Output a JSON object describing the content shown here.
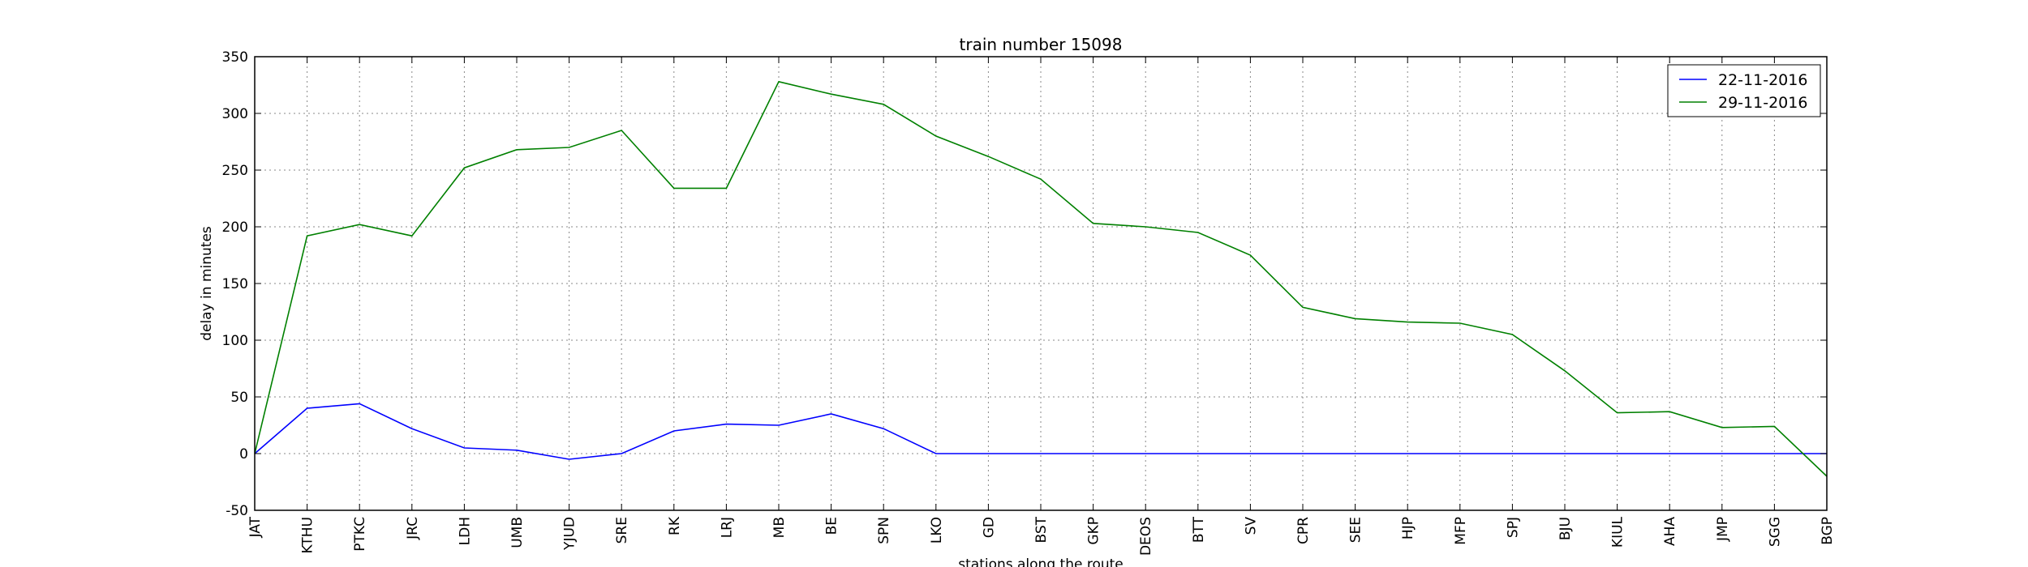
{
  "chart_data": {
    "type": "line",
    "title": "train number 15098",
    "xlabel": "stations along the route",
    "ylabel": "delay in minutes",
    "ylim": [
      -50,
      350
    ],
    "yticks": [
      -50,
      0,
      50,
      100,
      150,
      200,
      250,
      300,
      350
    ],
    "grid": true,
    "legend": "top-right",
    "categories": [
      "JAT",
      "KTHU",
      "PTKC",
      "JRC",
      "LDH",
      "UMB",
      "YJUD",
      "SRE",
      "RK",
      "LRJ",
      "MB",
      "BE",
      "SPN",
      "LKO",
      "GD",
      "BST",
      "GKP",
      "DEOS",
      "BTT",
      "SV",
      "CPR",
      "SEE",
      "HJP",
      "MFP",
      "SPJ",
      "BJU",
      "KIUL",
      "AHA",
      "JMP",
      "SGG",
      "BGP"
    ],
    "series": [
      {
        "name": "22-11-2016",
        "color": "#0000ff",
        "values": [
          0,
          40,
          44,
          22,
          5,
          3,
          -5,
          0,
          20,
          26,
          25,
          35,
          22,
          0,
          0,
          0,
          0,
          0,
          0,
          0,
          0,
          0,
          0,
          0,
          0,
          0,
          0,
          0,
          0,
          0,
          0
        ]
      },
      {
        "name": "29-11-2016",
        "color": "#008000",
        "values": [
          0,
          192,
          202,
          192,
          252,
          268,
          270,
          285,
          234,
          234,
          328,
          317,
          308,
          280,
          262,
          242,
          203,
          200,
          195,
          175,
          129,
          119,
          116,
          115,
          105,
          73,
          36,
          37,
          23,
          24,
          -20
        ]
      }
    ]
  }
}
